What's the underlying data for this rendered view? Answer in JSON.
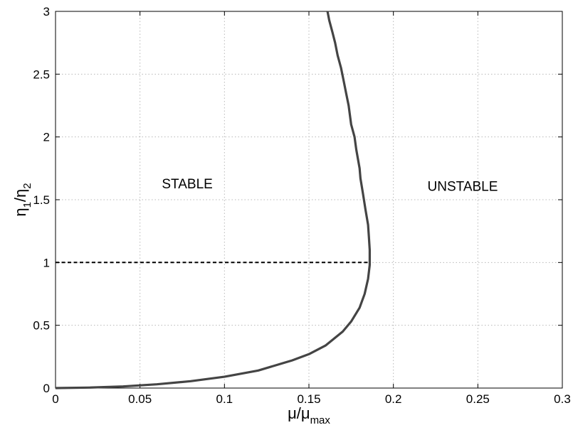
{
  "chart_data": {
    "type": "line",
    "title": "",
    "xlabel": {
      "base": "μ/μ",
      "sub": "max"
    },
    "ylabel": {
      "part1": "η",
      "sub1": "1",
      "part2": "/η",
      "sub2": "2"
    },
    "xlim": [
      0,
      0.3
    ],
    "ylim": [
      0,
      3
    ],
    "x_ticks": [
      0,
      0.05,
      0.1,
      0.15,
      0.2,
      0.25,
      0.3
    ],
    "x_tick_labels": [
      "0",
      "0.05",
      "0.1",
      "0.15",
      "0.2",
      "0.25",
      "0.3"
    ],
    "y_ticks": [
      0,
      0.5,
      1,
      1.5,
      2,
      2.5,
      3
    ],
    "y_tick_labels": [
      "0",
      "0.5",
      "1",
      "1.5",
      "2",
      "2.5",
      "3"
    ],
    "grid": true,
    "series": [
      {
        "style": "solid",
        "color": "#444444",
        "x": [
          0.0,
          0.02,
          0.04,
          0.06,
          0.08,
          0.1,
          0.12,
          0.14,
          0.15,
          0.16,
          0.17,
          0.175,
          0.18,
          0.183,
          0.185,
          0.186,
          0.186,
          0.1855,
          0.185,
          0.1835,
          0.182,
          0.1805,
          0.18,
          0.178,
          0.177,
          0.175,
          0.1735,
          0.172,
          0.1705,
          0.169,
          0.167,
          0.1655,
          0.164,
          0.162,
          0.161
        ],
        "y": [
          0.0,
          0.004,
          0.013,
          0.03,
          0.055,
          0.09,
          0.14,
          0.22,
          0.27,
          0.34,
          0.45,
          0.53,
          0.64,
          0.75,
          0.87,
          0.98,
          1.1,
          1.2,
          1.3,
          1.42,
          1.55,
          1.67,
          1.75,
          1.9,
          2.0,
          2.1,
          2.25,
          2.35,
          2.45,
          2.55,
          2.65,
          2.75,
          2.83,
          2.93,
          3.0
        ]
      },
      {
        "style": "dashed",
        "color": "#000000",
        "x": [
          0.0,
          0.186
        ],
        "y": [
          1.0,
          1.0
        ]
      }
    ],
    "annotations": [
      {
        "text": "STABLE",
        "x": 0.078,
        "y": 1.59
      },
      {
        "text": "UNSTABLE",
        "x": 0.241,
        "y": 1.57
      }
    ]
  }
}
